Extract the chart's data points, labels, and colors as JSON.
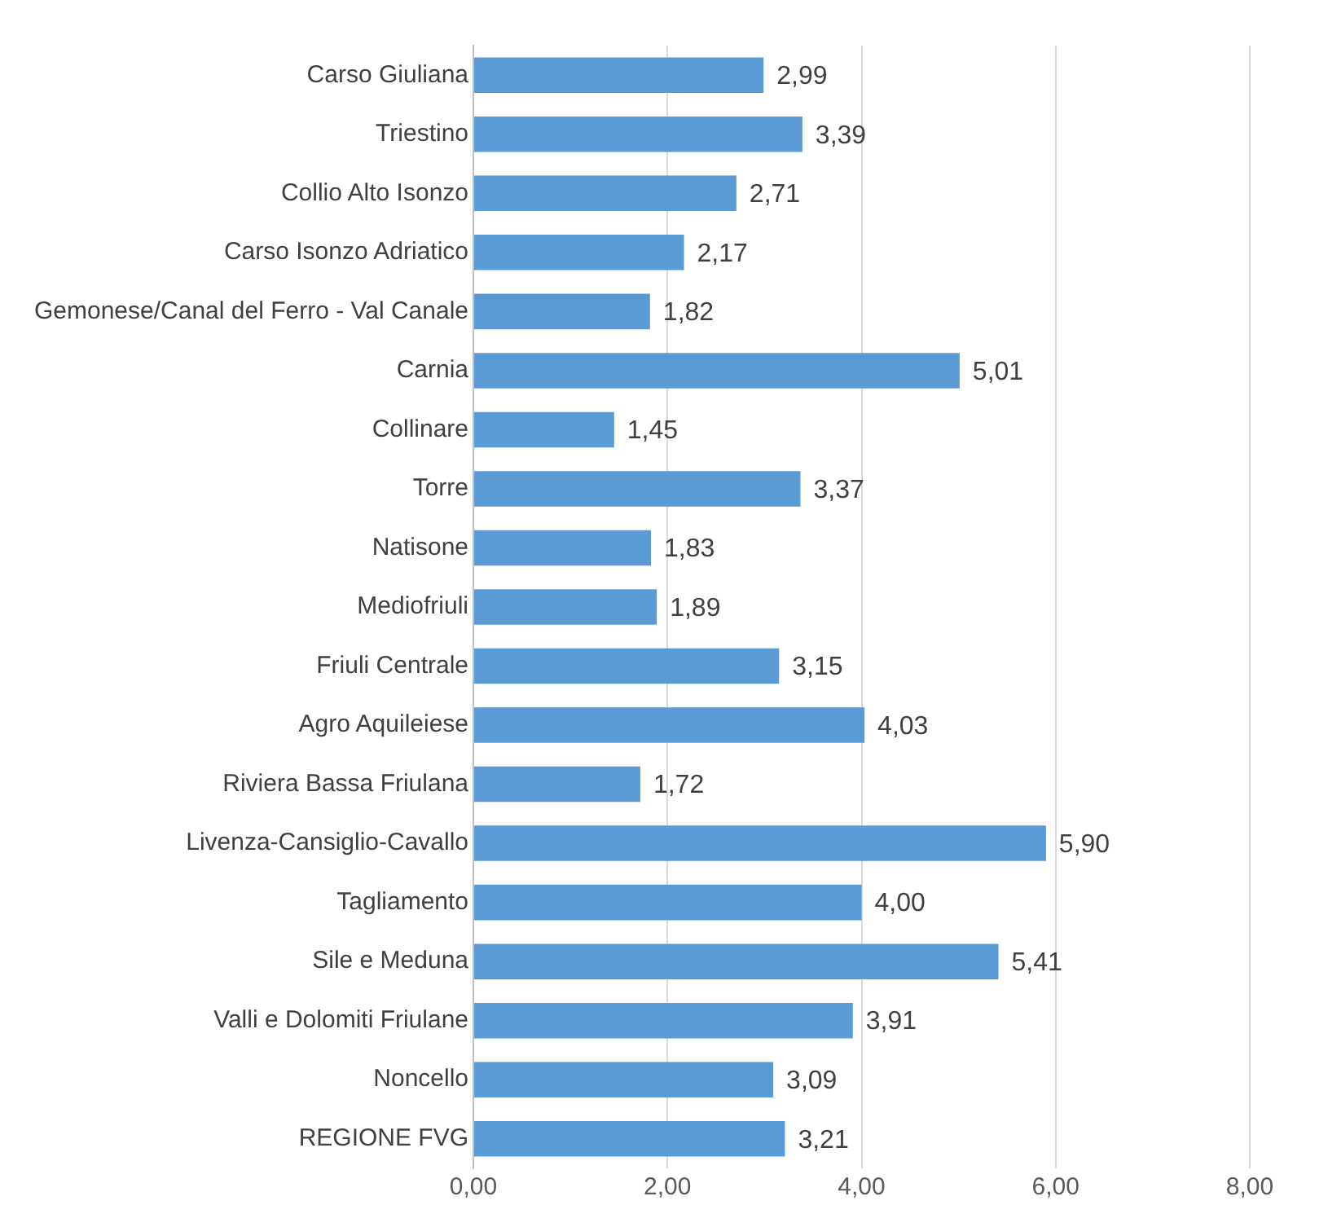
{
  "chart_data": {
    "type": "bar",
    "orientation": "horizontal",
    "categories": [
      "Carso Giuliana",
      "Triestino",
      "Collio Alto Isonzo",
      "Carso Isonzo Adriatico",
      "Gemonese/Canal del Ferro - Val Canale",
      "Carnia",
      "Collinare",
      "Torre",
      "Natisone",
      "Mediofriuli",
      "Friuli Centrale",
      "Agro Aquileiese",
      "Riviera Bassa Friulana",
      "Livenza-Cansiglio-Cavallo",
      "Tagliamento",
      "Sile e Meduna",
      "Valli e Dolomiti Friulane",
      "Noncello",
      "REGIONE FVG"
    ],
    "values": [
      2.99,
      3.39,
      2.71,
      2.17,
      1.82,
      5.01,
      1.45,
      3.37,
      1.83,
      1.89,
      3.15,
      4.03,
      1.72,
      5.9,
      4.0,
      5.41,
      3.91,
      3.09,
      3.21
    ],
    "value_labels": [
      "2,99",
      "3,39",
      "2,71",
      "2,17",
      "1,82",
      "5,01",
      "1,45",
      "3,37",
      "1,83",
      "1,89",
      "3,15",
      "4,03",
      "1,72",
      "5,90",
      "4,00",
      "5,41",
      "3,91",
      "3,09",
      "3,21"
    ],
    "color": "#5b9bd5",
    "xlim": [
      0,
      8
    ],
    "xticks": [
      {
        "value": 0,
        "label": "0,00"
      },
      {
        "value": 2,
        "label": "2,00"
      },
      {
        "value": 4,
        "label": "4,00"
      },
      {
        "value": 6,
        "label": "6,00"
      },
      {
        "value": 8,
        "label": "8,00"
      }
    ],
    "grid": "x",
    "legend": false
  }
}
